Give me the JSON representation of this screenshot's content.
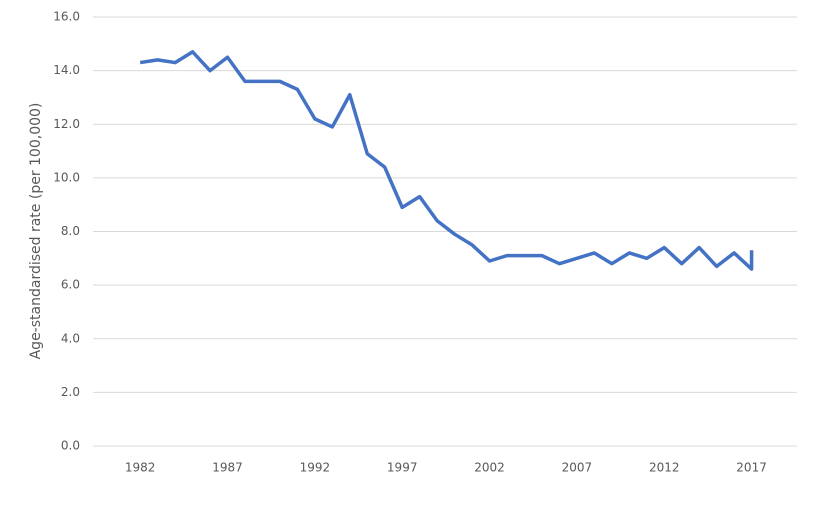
{
  "chart_data": {
    "type": "line",
    "y_label": "Age-standardised rate (per 100,000)",
    "x": [
      1982,
      1983,
      1984,
      1985,
      1986,
      1987,
      1988,
      1989,
      1990,
      1991,
      1992,
      1993,
      1994,
      1995,
      1996,
      1997,
      1998,
      1999,
      2000,
      2001,
      2002,
      2003,
      2004,
      2005,
      2006,
      2007,
      2008,
      2009,
      2010,
      2011,
      2012,
      2013,
      2014,
      2015,
      2016,
      2017,
      2017
    ],
    "values": [
      14.3,
      14.4,
      14.3,
      14.7,
      14.0,
      14.5,
      13.6,
      13.6,
      13.6,
      13.3,
      12.2,
      11.9,
      13.1,
      10.9,
      10.4,
      8.9,
      9.3,
      8.4,
      7.9,
      7.5,
      6.9,
      7.1,
      7.1,
      7.1,
      6.8,
      7.0,
      7.2,
      6.8,
      7.2,
      7.0,
      7.4,
      6.8,
      7.4,
      6.7,
      7.2,
      6.6,
      7.3
    ],
    "color": "#4472c4",
    "xlim": [
      1979.3,
      2019.6
    ],
    "xticks": [
      1982,
      1987,
      1992,
      1997,
      2002,
      2007,
      2012,
      2017
    ],
    "ylim": [
      0,
      16
    ],
    "yticks": [
      {
        "value": 0,
        "label": "0.0"
      },
      {
        "value": 2,
        "label": "2.0"
      },
      {
        "value": 4,
        "label": "4.0"
      },
      {
        "value": 6,
        "label": "6.0"
      },
      {
        "value": 8,
        "label": "8.0"
      },
      {
        "value": 10,
        "label": "10.0"
      },
      {
        "value": 12,
        "label": "12.0"
      },
      {
        "value": 14,
        "label": "14.0"
      },
      {
        "value": 16,
        "label": "16.0"
      }
    ],
    "grid": true
  }
}
